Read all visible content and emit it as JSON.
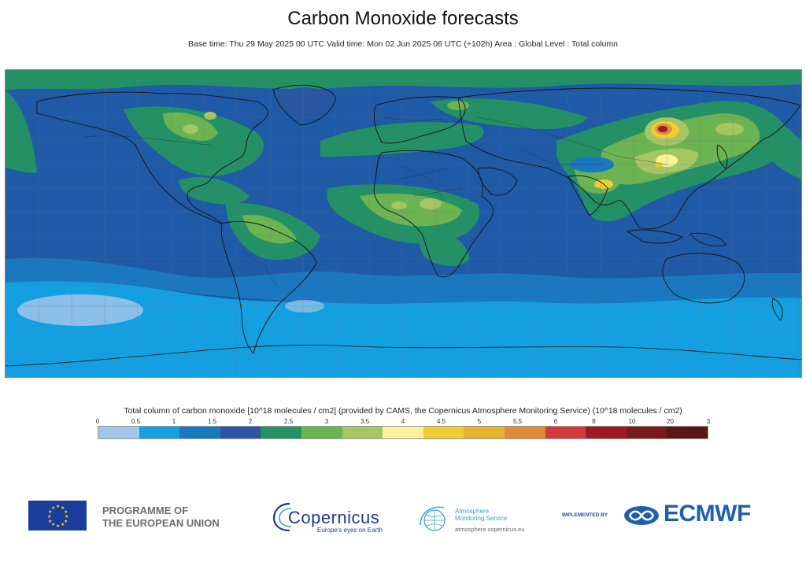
{
  "title": "Carbon Monoxide forecasts",
  "subtitle": "Base time: Thu 29 May 2025 00 UTC Valid time: Mon 02 Jun 2025 06 UTC (+102h) Area : Global Level : Total column",
  "legend": {
    "title": "Total column of carbon monoxide [10^18 molecules / cm2] (provided by CAMS, the Copernicus Atmosphere Monitoring Service) (10^18 molecules / cm2)",
    "ticks": [
      "0",
      "0.5",
      "1",
      "1.5",
      "2",
      "2.5",
      "3",
      "3.5",
      "4",
      "4.5",
      "5",
      "5.5",
      "6",
      "8",
      "10",
      "20",
      "3"
    ],
    "colors": [
      "#9fc6ea",
      "#14a0e0",
      "#1a78c0",
      "#2a55a0",
      "#249066",
      "#6cb451",
      "#a6c563",
      "#fbf09c",
      "#f2cd32",
      "#e9b230",
      "#e28a3c",
      "#d13b3c",
      "#a01a24",
      "#7a1a1a",
      "#5a1616"
    ]
  },
  "map": {
    "background_color": "#1f5aa6",
    "ocean_south_color": "#14a0e0"
  },
  "logos": {
    "eu_line1": "PROGRAMME OF",
    "eu_line2": "THE EUROPEAN UNION",
    "copernicus_word": "Copernicus",
    "copernicus_tagline": "Europe's eyes on Earth",
    "ams_line1": "Atmosphere",
    "ams_line2": "Monitoring Service",
    "ams_url": "atmosphere.copernicus.eu",
    "implemented_by": "IMPLEMENTED BY",
    "ecmwf": "ECMWF"
  },
  "icons": [
    "eu-flag-icon",
    "copernicus-logo-icon",
    "ams-globe-icon",
    "ecmwf-logo-icon"
  ]
}
